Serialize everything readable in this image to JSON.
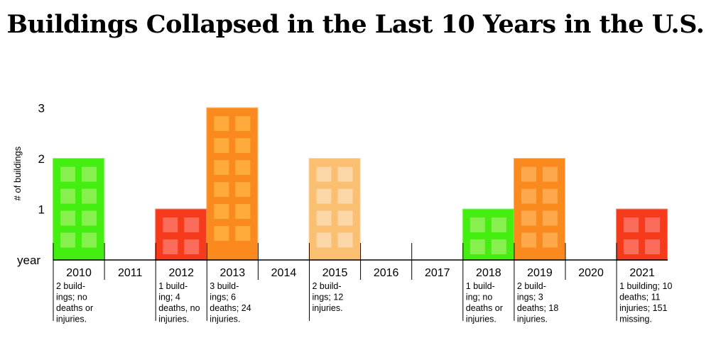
{
  "chart_data": {
    "type": "bar",
    "title": "Buildings Collapsed in the Last 10 Years in the U.S.",
    "ylabel": "# of buildings",
    "xlabel": "year",
    "ylim": [
      0,
      3
    ],
    "yticks": [
      "1",
      "2",
      "3"
    ],
    "grid": false,
    "categories": [
      "2010",
      "2011",
      "2012",
      "2013",
      "2014",
      "2015",
      "2016",
      "2017",
      "2018",
      "2019",
      "2020",
      "2021"
    ],
    "values": [
      2,
      0,
      1,
      3,
      0,
      2,
      0,
      0,
      1,
      2,
      0,
      1
    ],
    "notes": [
      [
        "2 build-",
        "ings; no",
        "deaths or",
        "injuries."
      ],
      [],
      [
        "1 build-",
        "ing; 4",
        "deaths, no",
        "injuries."
      ],
      [
        "3 build-",
        "ings; 6",
        "deaths; 24",
        "injuries."
      ],
      [],
      [
        "2 build-",
        "ings; 12",
        "injuries."
      ],
      [],
      [],
      [
        "1 build-",
        "ing; no",
        "deaths or",
        "injuries."
      ],
      [
        "2 build-",
        "ings; 3",
        "deaths; 18",
        "injuries."
      ],
      [],
      [
        "1 building; 10",
        "deaths; 11",
        "injuries; 151",
        "missing."
      ]
    ],
    "bar_colors": [
      "#44ee11",
      null,
      "#f63a1c",
      "#fb8a1e",
      null,
      "#fbbf72",
      null,
      null,
      "#44ee11",
      "#fb8a1e",
      null,
      "#f63a1c"
    ],
    "window_colors": [
      "#88f04e",
      null,
      "#fc6c5a",
      "#ffab3c",
      null,
      "#fbd7a8",
      null,
      null,
      "#88f04e",
      "#fda84a",
      null,
      "#fc6c5a"
    ]
  }
}
